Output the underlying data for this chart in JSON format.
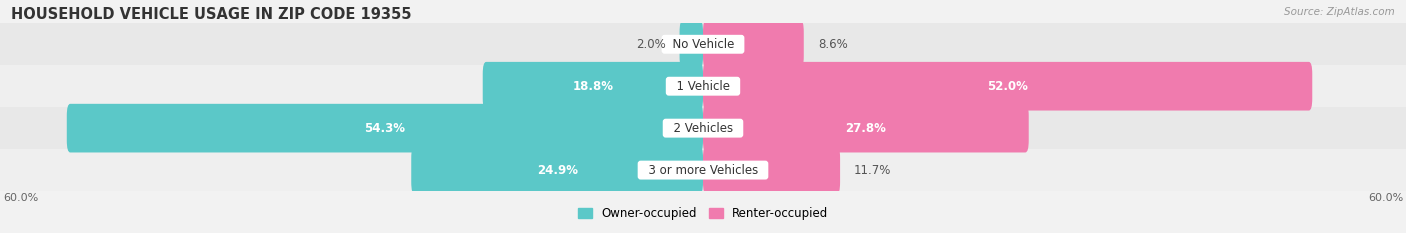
{
  "title": "HOUSEHOLD VEHICLE USAGE IN ZIP CODE 19355",
  "source": "Source: ZipAtlas.com",
  "categories": [
    "No Vehicle",
    "1 Vehicle",
    "2 Vehicles",
    "3 or more Vehicles"
  ],
  "owner_values": [
    2.0,
    18.8,
    54.3,
    24.9
  ],
  "renter_values": [
    8.6,
    52.0,
    27.8,
    11.7
  ],
  "owner_color": "#5BC8C8",
  "renter_color": "#F07BAE",
  "owner_label": "Owner-occupied",
  "renter_label": "Renter-occupied",
  "axis_limit": 60.0,
  "axis_label_left": "60.0%",
  "axis_label_right": "60.0%",
  "bar_height": 0.58,
  "bg_color": "#f2f2f2",
  "title_fontsize": 10.5,
  "source_fontsize": 7.5,
  "label_fontsize": 8.5,
  "category_fontsize": 8.5,
  "axis_fontsize": 8,
  "row_alt_color": "#e8e8e8",
  "row_base_color": "#efefef"
}
